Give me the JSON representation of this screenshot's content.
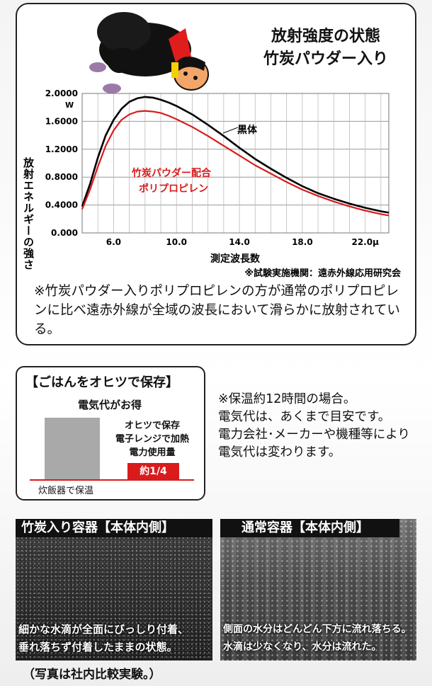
{
  "chart_title_line1": "放射強度の状態",
  "chart_title_line2": "竹炭パウダー入り",
  "chart_note": "※竹炭パウダー入りポリプロピレンの方が通常のポリプロピレンに比べ遠赤外線が全域の波長において滑らかに放射されている。",
  "chart_source": "※試験実施機関：遠赤外線応用研究会",
  "chart_data": {
    "type": "line",
    "ylabel": "放射エネルギーの強さ",
    "yunit": "W",
    "xlabel": "測定波長数",
    "ylim": [
      0,
      2.0
    ],
    "xlim": [
      4.0,
      23.5
    ],
    "yticks": [
      "0.000",
      "0.4000",
      "0.8000",
      "1.2000",
      "1.6000",
      "2.0000"
    ],
    "ytick_values": [
      0,
      0.4,
      0.8,
      1.2,
      1.6,
      2.0
    ],
    "xticks": [
      "6.0",
      "10.0",
      "14.0",
      "18.0",
      "22.0μ"
    ],
    "xtick_values": [
      6,
      10,
      14,
      18,
      22
    ],
    "grid": true,
    "series": [
      {
        "name": "黒体",
        "color": "#000000",
        "x": [
          4.0,
          4.5,
          5.0,
          5.5,
          6.0,
          6.5,
          7.0,
          7.5,
          8.0,
          8.5,
          9.0,
          9.5,
          10.0,
          11.0,
          12.0,
          13.0,
          14.0,
          15.0,
          16.0,
          17.0,
          18.0,
          19.0,
          20.0,
          21.0,
          22.0,
          23.0,
          23.5
        ],
        "y": [
          0.38,
          0.7,
          1.08,
          1.4,
          1.62,
          1.78,
          1.88,
          1.93,
          1.95,
          1.94,
          1.91,
          1.87,
          1.82,
          1.7,
          1.55,
          1.39,
          1.22,
          1.06,
          0.92,
          0.79,
          0.67,
          0.57,
          0.49,
          0.42,
          0.36,
          0.31,
          0.29
        ]
      },
      {
        "name": "竹炭パウダー配合ポリプロピレン",
        "color": "#d91b1b",
        "x": [
          4.0,
          4.5,
          5.0,
          5.5,
          6.0,
          6.5,
          7.0,
          7.5,
          8.0,
          8.5,
          9.0,
          9.5,
          10.0,
          11.0,
          12.0,
          13.0,
          14.0,
          15.0,
          16.0,
          17.0,
          18.0,
          19.0,
          20.0,
          21.0,
          22.0,
          23.0,
          23.5
        ],
        "y": [
          0.34,
          0.62,
          0.95,
          1.25,
          1.47,
          1.62,
          1.7,
          1.74,
          1.75,
          1.74,
          1.72,
          1.68,
          1.63,
          1.52,
          1.39,
          1.25,
          1.11,
          0.97,
          0.85,
          0.73,
          0.62,
          0.53,
          0.45,
          0.38,
          0.32,
          0.27,
          0.25
        ]
      }
    ],
    "annotations": [
      "黒体",
      "竹炭パウダー配合",
      "ポリプロピレン"
    ]
  },
  "savings": {
    "title": "【ごはんをオヒツで保存】",
    "subtitle": "電気代がお得",
    "bar1_label": "炊飯器で保温",
    "bar2_desc_line1": "オヒツで保存",
    "bar2_desc_line2": "電子レンジで加熱",
    "bar2_desc_line3": "電力使用量",
    "bar2_value": "約1/4",
    "bar_ratio": [
      1,
      0.25
    ],
    "note_line1": "※保温約12時間の場合。",
    "note_line2": "電気代は、あくまで目安です。",
    "note_line3": "電力会社･メーカーや機種等により",
    "note_line4": "電気代は変わります。"
  },
  "photos": {
    "left_title": "竹炭入り容器【本体内側】",
    "left_text_line1": "細かな水滴が全面にびっしり付着、",
    "left_text_line2": "垂れ落ちず付着したままの状態。",
    "right_title": "通常容器【本体内側】",
    "right_text_line1": "側面の水分はどんどん下方に流れ落ちる。",
    "right_text_line2": "水滴は少なくなり、水分は流れた。",
    "footer": "（写真は社内比較実験。）"
  }
}
